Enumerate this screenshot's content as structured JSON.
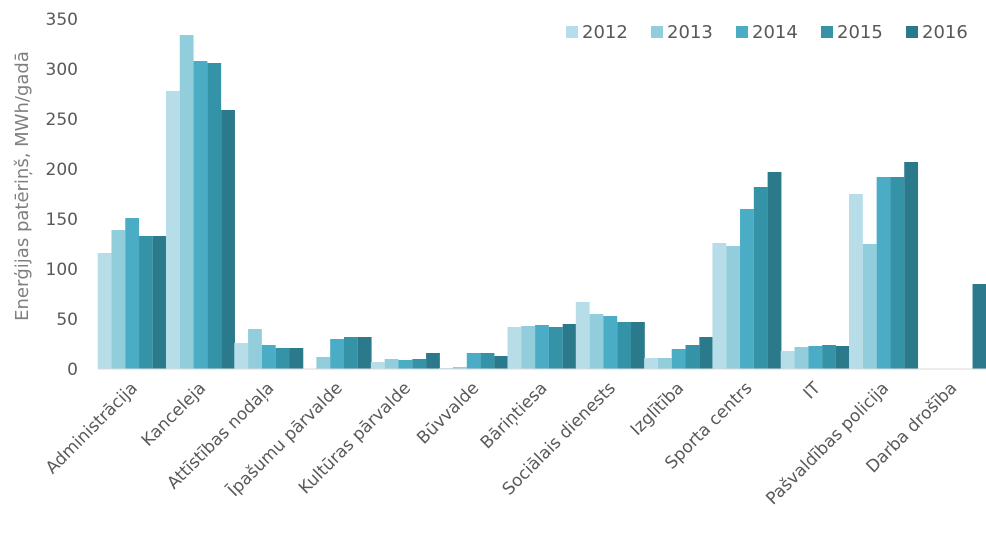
{
  "chart_data": {
    "type": "bar",
    "title": "",
    "xlabel": "",
    "ylabel": "Enerģijas patēriņš, MWh/gadā",
    "ylim": [
      0,
      350
    ],
    "yticks": [
      0,
      50,
      100,
      150,
      200,
      250,
      300,
      350
    ],
    "grid": false,
    "legend_position": "top-right",
    "categories": [
      "Administrācija",
      "Kanceleja",
      "Attīstības nodaļa",
      "Īpašumu pārvalde",
      "Kultūras pārvalde",
      "Būvvalde",
      "Bāriņtiesa",
      "Sociālais dienests",
      "Izglītība",
      "Sporta centrs",
      "IT",
      "Pašvaldības policija",
      "Darba drošība"
    ],
    "series": [
      {
        "name": "2012",
        "color": "#b7dde8",
        "values": [
          116,
          278,
          26,
          0,
          7,
          1,
          42,
          67,
          11,
          126,
          18,
          175,
          0
        ]
      },
      {
        "name": "2013",
        "color": "#92cddc",
        "values": [
          139,
          334,
          40,
          12,
          10,
          2,
          43,
          55,
          11,
          123,
          22,
          125,
          0
        ]
      },
      {
        "name": "2014",
        "color": "#4bacc6",
        "values": [
          151,
          308,
          24,
          30,
          9,
          16,
          44,
          53,
          20,
          160,
          23,
          192,
          0
        ]
      },
      {
        "name": "2015",
        "color": "#3593a8",
        "values": [
          133,
          306,
          21,
          32,
          10,
          16,
          42,
          47,
          24,
          182,
          24,
          192,
          0
        ]
      },
      {
        "name": "2016",
        "color": "#2a7a8c",
        "values": [
          133,
          259,
          21,
          32,
          16,
          13,
          45,
          47,
          32,
          197,
          23,
          207,
          85
        ]
      }
    ]
  }
}
